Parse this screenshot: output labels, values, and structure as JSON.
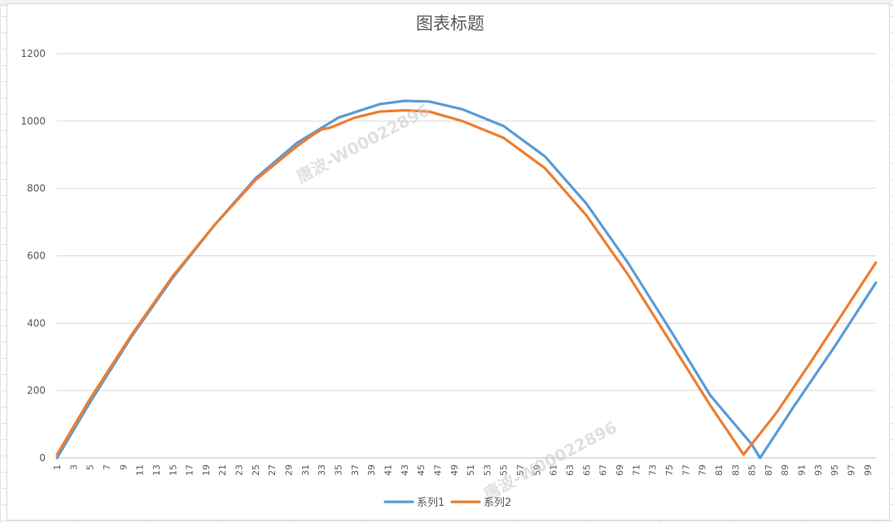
{
  "chart_data": {
    "type": "line",
    "title": "图表标题",
    "xlabel": "",
    "ylabel": "",
    "ylim": [
      0,
      1200
    ],
    "yticks": [
      0,
      200,
      400,
      600,
      800,
      1000,
      1200
    ],
    "xticks": [
      1,
      3,
      5,
      7,
      9,
      11,
      13,
      15,
      17,
      19,
      21,
      23,
      25,
      27,
      29,
      31,
      33,
      35,
      37,
      39,
      41,
      43,
      45,
      47,
      49,
      51,
      53,
      55,
      57,
      59,
      61,
      63,
      65,
      67,
      69,
      71,
      73,
      75,
      77,
      79,
      81,
      83,
      85,
      87,
      89,
      91,
      93,
      95,
      97,
      99
    ],
    "grid": true,
    "legend": "bottom",
    "series": [
      {
        "name": "系列1",
        "color": "#5b9bd5",
        "points": [
          [
            1,
            0
          ],
          [
            5,
            165
          ],
          [
            10,
            360
          ],
          [
            15,
            535
          ],
          [
            20,
            690
          ],
          [
            25,
            830
          ],
          [
            30,
            935
          ],
          [
            35,
            1010
          ],
          [
            40,
            1050
          ],
          [
            43,
            1060
          ],
          [
            46,
            1058
          ],
          [
            50,
            1035
          ],
          [
            55,
            985
          ],
          [
            60,
            895
          ],
          [
            65,
            755
          ],
          [
            70,
            580
          ],
          [
            75,
            385
          ],
          [
            80,
            185
          ],
          [
            85,
            40
          ],
          [
            86,
            0
          ],
          [
            90,
            150
          ],
          [
            95,
            330
          ],
          [
            100,
            520
          ]
        ]
      },
      {
        "name": "系列2",
        "color": "#ed7d31",
        "points": [
          [
            1,
            10
          ],
          [
            5,
            175
          ],
          [
            10,
            365
          ],
          [
            15,
            540
          ],
          [
            20,
            690
          ],
          [
            25,
            825
          ],
          [
            30,
            925
          ],
          [
            32,
            960
          ],
          [
            33,
            975
          ],
          [
            34,
            980
          ],
          [
            37,
            1010
          ],
          [
            40,
            1028
          ],
          [
            43,
            1032
          ],
          [
            46,
            1028
          ],
          [
            50,
            1000
          ],
          [
            55,
            950
          ],
          [
            60,
            860
          ],
          [
            65,
            720
          ],
          [
            70,
            545
          ],
          [
            75,
            350
          ],
          [
            80,
            155
          ],
          [
            84,
            10
          ],
          [
            88,
            135
          ],
          [
            92,
            280
          ],
          [
            96,
            430
          ],
          [
            100,
            580
          ]
        ]
      }
    ]
  },
  "watermark": {
    "text": "唐波-W00022896"
  }
}
